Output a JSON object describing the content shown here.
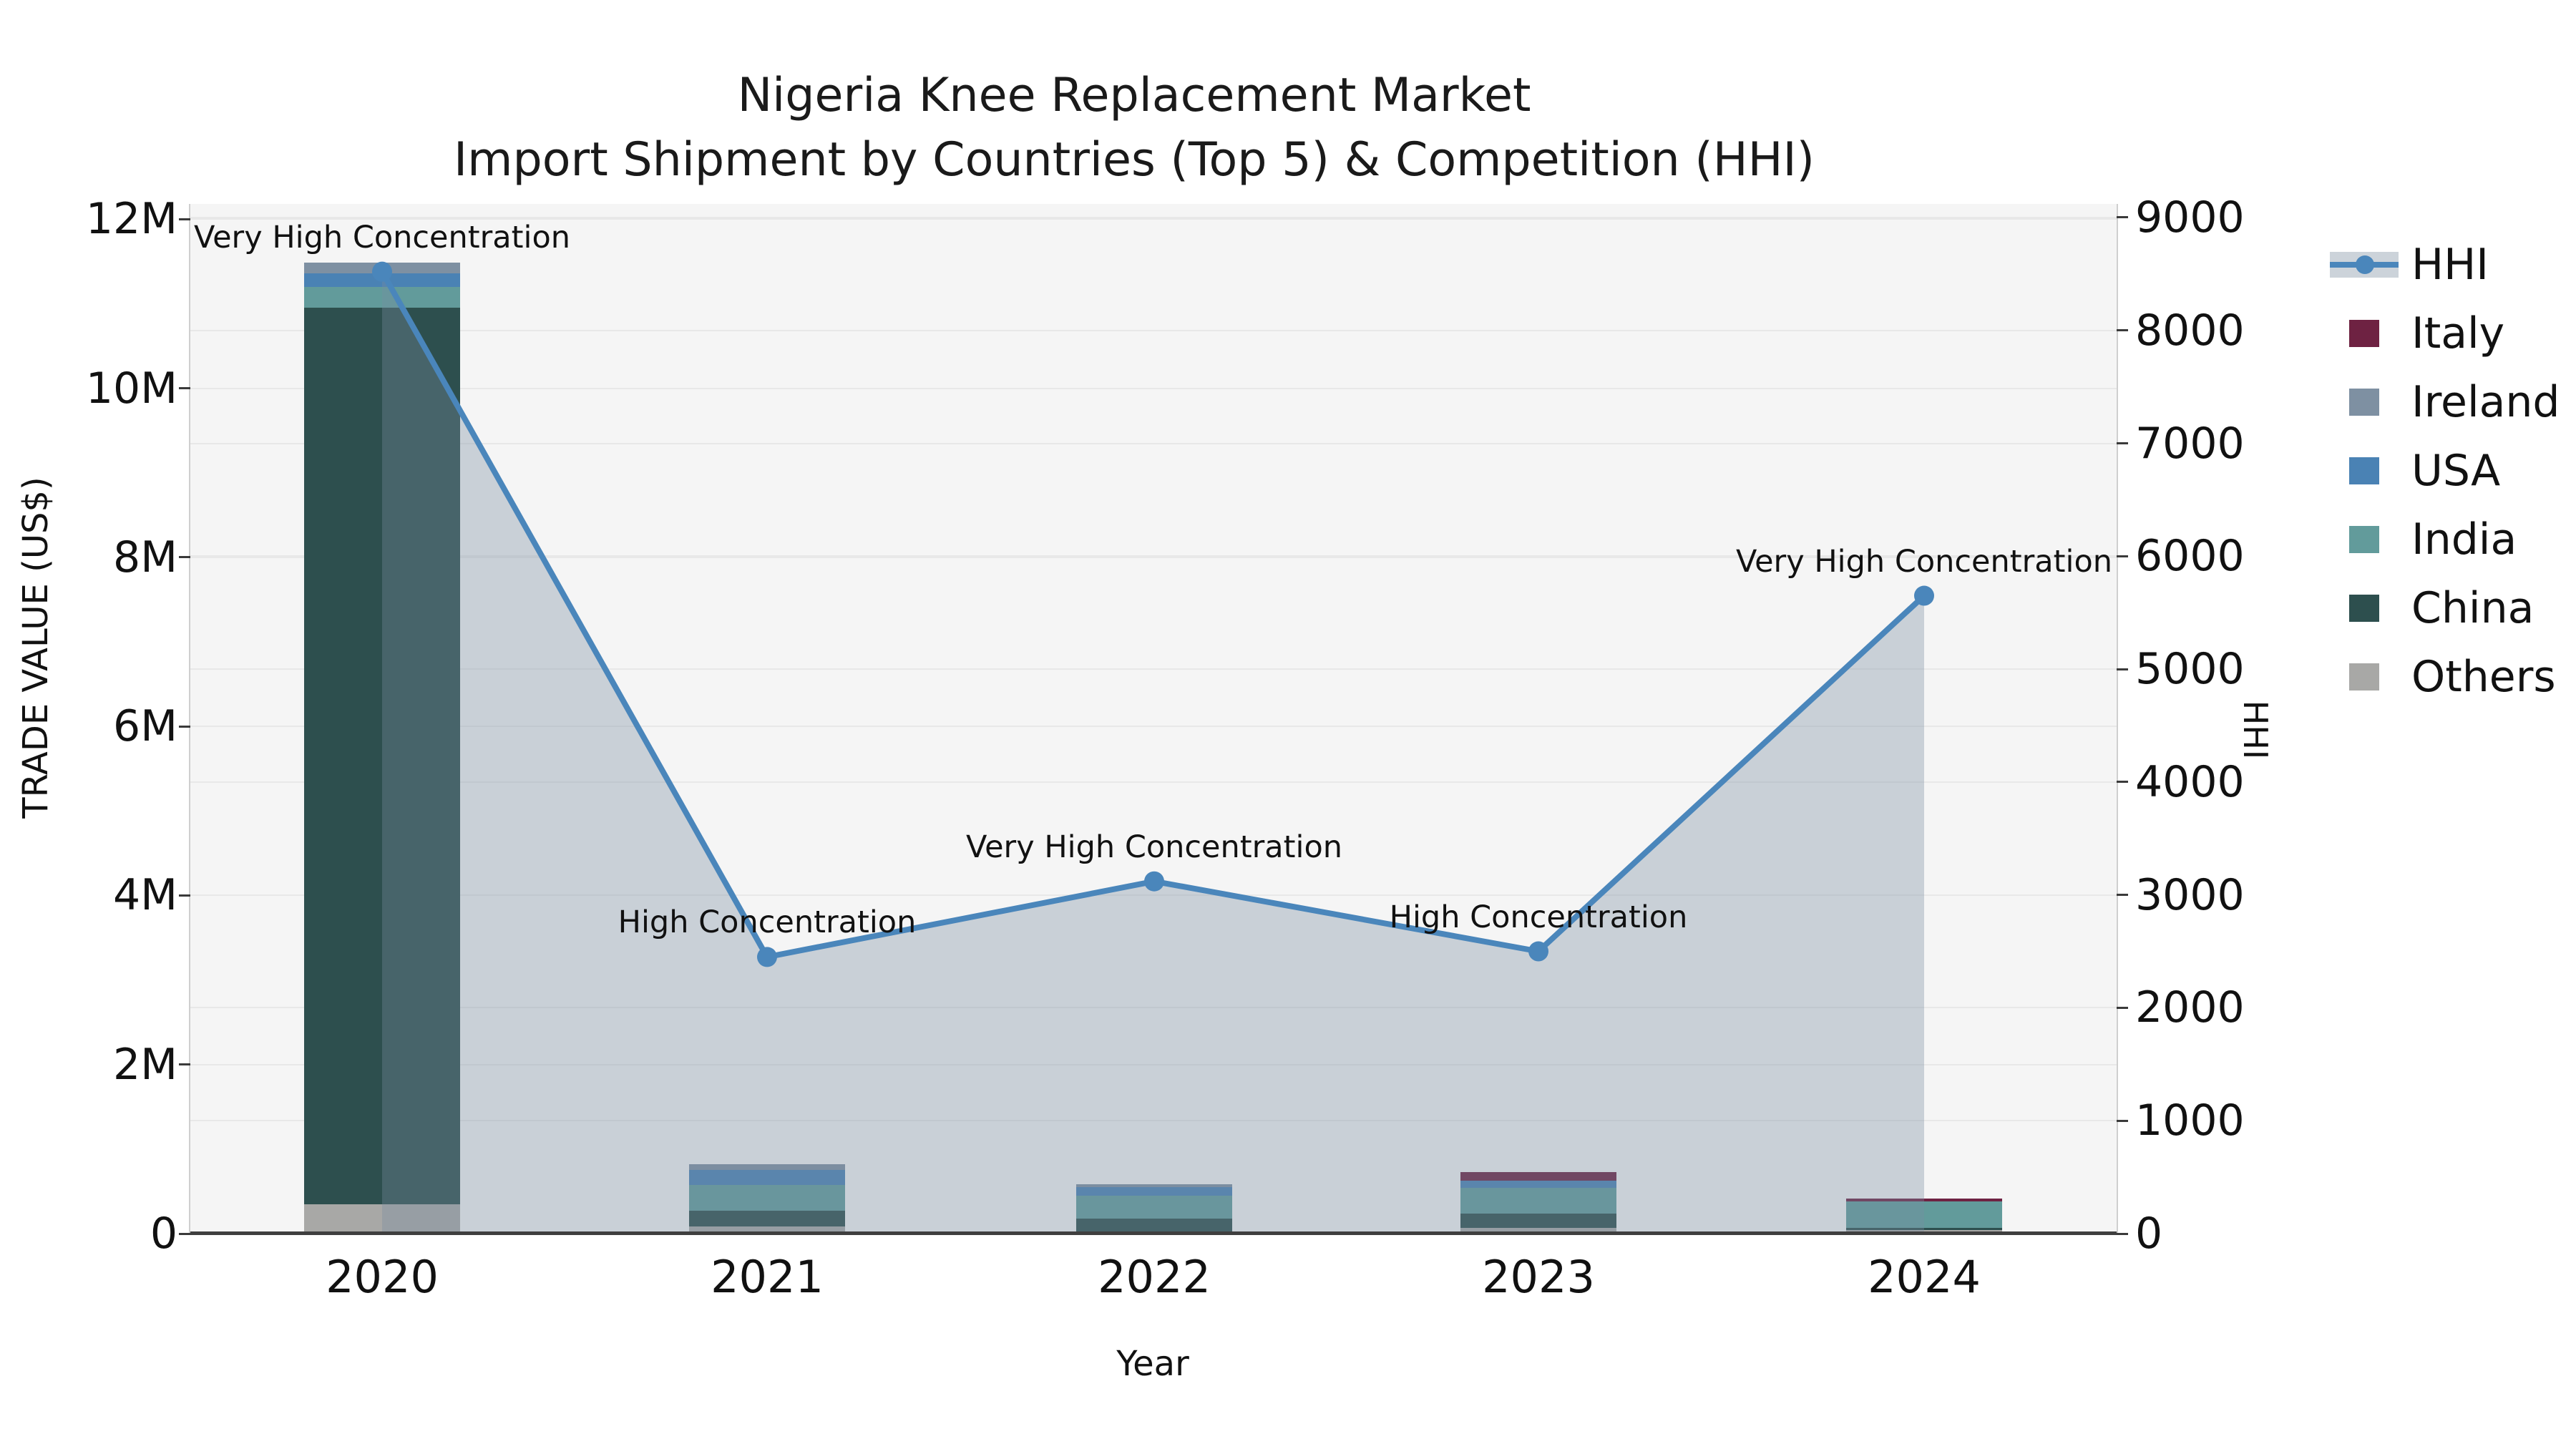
{
  "title": {
    "line1": "Nigeria Knee Replacement Market",
    "line2": "Import Shipment by Countries (Top 5) & Competition (HHI)"
  },
  "axes": {
    "x": {
      "label": "Year"
    },
    "y_left": {
      "label": "TRADE VALUE (US$)",
      "ticks": [
        {
          "label": "0",
          "value": 0
        },
        {
          "label": "2M",
          "value": 2
        },
        {
          "label": "4M",
          "value": 4
        },
        {
          "label": "6M",
          "value": 6
        },
        {
          "label": "8M",
          "value": 8
        },
        {
          "label": "10M",
          "value": 10
        },
        {
          "label": "12M",
          "value": 12
        }
      ]
    },
    "y_right": {
      "label": "HHI",
      "ticks": [
        {
          "label": "0",
          "value": 0
        },
        {
          "label": "1000",
          "value": 1000
        },
        {
          "label": "2000",
          "value": 2000
        },
        {
          "label": "3000",
          "value": 3000
        },
        {
          "label": "4000",
          "value": 4000
        },
        {
          "label": "5000",
          "value": 5000
        },
        {
          "label": "6000",
          "value": 6000
        },
        {
          "label": "7000",
          "value": 7000
        },
        {
          "label": "8000",
          "value": 8000
        },
        {
          "label": "9000",
          "value": 9000
        }
      ]
    }
  },
  "legend": {
    "items": [
      "HHI",
      "Italy",
      "Ireland",
      "USA",
      "India",
      "China",
      "Others"
    ]
  },
  "colors": {
    "plot_background": "#f5f5f5",
    "page_background": "#ffffff",
    "hhi_line": "#4a86bb",
    "hhi_area_fill": "rgba(120,140,160,0.35)",
    "Italy": "#6e2242",
    "Ireland": "#7e90a2",
    "USA": "#4a82b4",
    "India": "#629b9b",
    "China": "#2d4f4e",
    "Others": "#a8a8a6"
  },
  "chart_data": {
    "type": "combo",
    "bar_type": "stacked-bar",
    "line_type": "line-with-area",
    "categories": [
      "2020",
      "2021",
      "2022",
      "2023",
      "2024"
    ],
    "bar_value_unit": "US$ millions (left axis TRADE VALUE)",
    "bar_series_bottom_to_top": [
      {
        "name": "Others",
        "color": "#a8a8a6",
        "values": [
          0.35,
          0.085,
          0.03,
          0.07,
          0.04
        ]
      },
      {
        "name": "China",
        "color": "#2d4f4e",
        "values": [
          10.6,
          0.19,
          0.145,
          0.17,
          0.028
        ]
      },
      {
        "name": "India",
        "color": "#629b9b",
        "values": [
          0.25,
          0.305,
          0.275,
          0.3,
          0.315
        ]
      },
      {
        "name": "USA",
        "color": "#4a82b4",
        "values": [
          0.16,
          0.175,
          0.1,
          0.09,
          0
        ]
      },
      {
        "name": "Ireland",
        "color": "#7e90a2",
        "values": [
          0.13,
          0.068,
          0.035,
          0,
          0
        ]
      },
      {
        "name": "Italy",
        "color": "#6e2242",
        "values": [
          0,
          0,
          0,
          0.095,
          0.033
        ]
      }
    ],
    "bar_totals_m": [
      11.49,
      0.823,
      0.585,
      0.725,
      0.416
    ],
    "line_series": {
      "name": "HHI",
      "color": "#4a86bb",
      "area_fill": "rgba(120,140,160,0.35)",
      "values": [
        8520,
        2450,
        3120,
        2500,
        5650
      ]
    },
    "annotations": [
      {
        "category": "2020",
        "text": "Very High Concentration"
      },
      {
        "category": "2021",
        "text": "High Concentration"
      },
      {
        "category": "2022",
        "text": "Very High Concentration"
      },
      {
        "category": "2023",
        "text": "High Concentration"
      },
      {
        "category": "2024",
        "text": "Very High Concentration"
      }
    ],
    "ylim_left_m": [
      0,
      12.18
    ],
    "ylim_right": [
      0,
      9120
    ],
    "grid": true,
    "legend_position": "outside-top-right"
  }
}
